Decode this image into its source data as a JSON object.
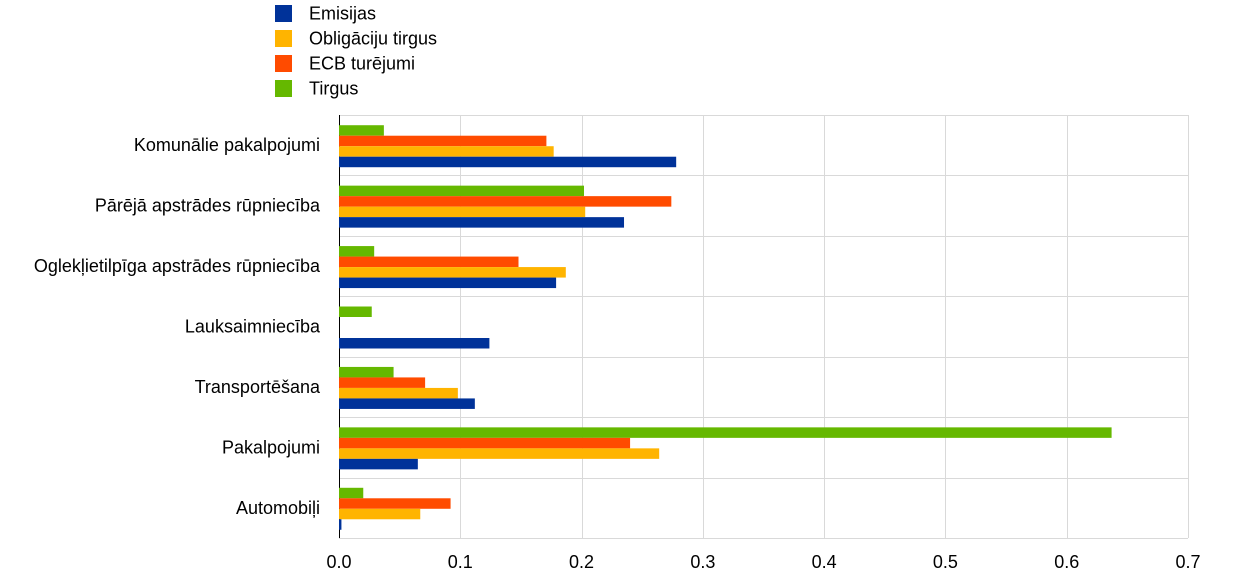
{
  "chart_data": {
    "type": "bar",
    "orientation": "horizontal",
    "categories": [
      "Komunālie pakalpojumi",
      "Pārējā apstrādes rūpniecība",
      "Oglekļietilpīga apstrādes rūpniecība",
      "Lauksaimniecība",
      "Transportēšana",
      "Pakalpojumi",
      "Automobiļi"
    ],
    "series": [
      {
        "name": "Emisijas",
        "color": "#003299",
        "values": [
          0.278,
          0.235,
          0.179,
          0.124,
          0.112,
          0.065,
          0.002
        ]
      },
      {
        "name": "Obligāciju tirgus",
        "color": "#ffb400",
        "values": [
          0.177,
          0.203,
          0.187,
          0.0,
          0.098,
          0.264,
          0.067
        ]
      },
      {
        "name": "ECB turējumi",
        "color": "#ff4b00",
        "values": [
          0.171,
          0.274,
          0.148,
          0.0,
          0.071,
          0.24,
          0.092
        ]
      },
      {
        "name": "Tirgus",
        "color": "#65b800",
        "values": [
          0.037,
          0.202,
          0.029,
          0.027,
          0.045,
          0.637,
          0.02
        ]
      }
    ],
    "x_ticks": [
      "0.0",
      "0.1",
      "0.2",
      "0.3",
      "0.4",
      "0.5",
      "0.6",
      "0.7"
    ],
    "xlim": [
      0,
      0.7
    ],
    "title": "",
    "xlabel": "",
    "ylabel": "",
    "grid": true,
    "legend_position": "top-left"
  }
}
